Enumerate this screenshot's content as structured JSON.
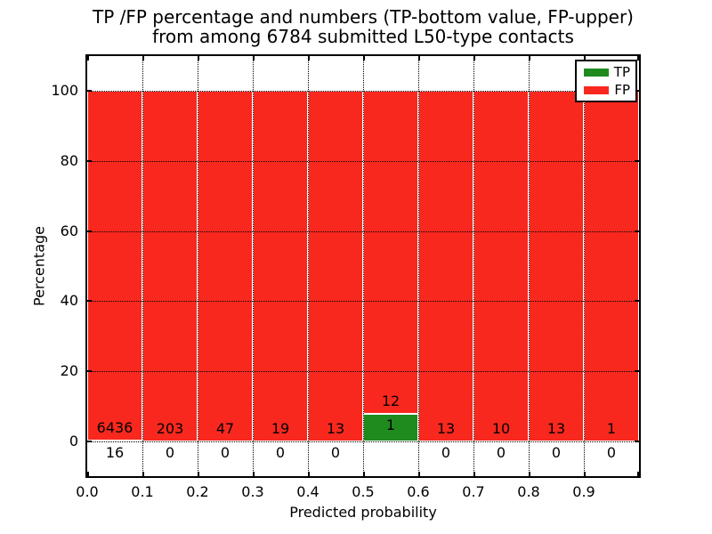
{
  "figure": {
    "title_line1": "TP /FP percentage and numbers (TP-bottom value, FP-upper)",
    "title_line2": "from among 6784 submitted L50-type contacts",
    "xlabel": "Predicted probability",
    "ylabel": "Percentage"
  },
  "legend": {
    "position": "upper right",
    "items": [
      {
        "label": "TP",
        "color": "#1f8b1f"
      },
      {
        "label": "FP",
        "color": "#f9281e"
      }
    ]
  },
  "chart_data": {
    "type": "bar",
    "stacked": true,
    "title": "TP /FP percentage and numbers (TP-bottom value, FP-upper) from among 6784 submitted L50-type contacts",
    "xlabel": "Predicted probability",
    "ylabel": "Percentage",
    "total_contacts": 6784,
    "bins": [
      "0.0-0.1",
      "0.1-0.2",
      "0.2-0.3",
      "0.3-0.4",
      "0.4-0.5",
      "0.5-0.6",
      "0.6-0.7",
      "0.7-0.8",
      "0.8-0.9",
      "0.9-1.0"
    ],
    "xticks": [
      "0.0",
      "0.1",
      "0.2",
      "0.3",
      "0.4",
      "0.5",
      "0.6",
      "0.7",
      "0.8",
      "0.9"
    ],
    "yticks": [
      0,
      20,
      40,
      60,
      80,
      100
    ],
    "xlim": [
      0.0,
      1.0
    ],
    "ylim": [
      -10,
      110
    ],
    "grid": true,
    "series": [
      {
        "name": "TP",
        "color": "#1f8b1f",
        "counts": [
          16,
          0,
          0,
          0,
          0,
          1,
          0,
          0,
          0,
          0
        ]
      },
      {
        "name": "FP",
        "color": "#f9281e",
        "counts": [
          6436,
          203,
          47,
          19,
          13,
          12,
          13,
          10,
          13,
          1
        ]
      }
    ],
    "percent_tp": [
      0.25,
      0.0,
      0.0,
      0.0,
      0.0,
      7.69,
      0.0,
      0.0,
      0.0,
      0.0
    ],
    "percent_fp": [
      99.75,
      100.0,
      100.0,
      100.0,
      100.0,
      92.31,
      100.0,
      100.0,
      100.0,
      100.0
    ]
  }
}
